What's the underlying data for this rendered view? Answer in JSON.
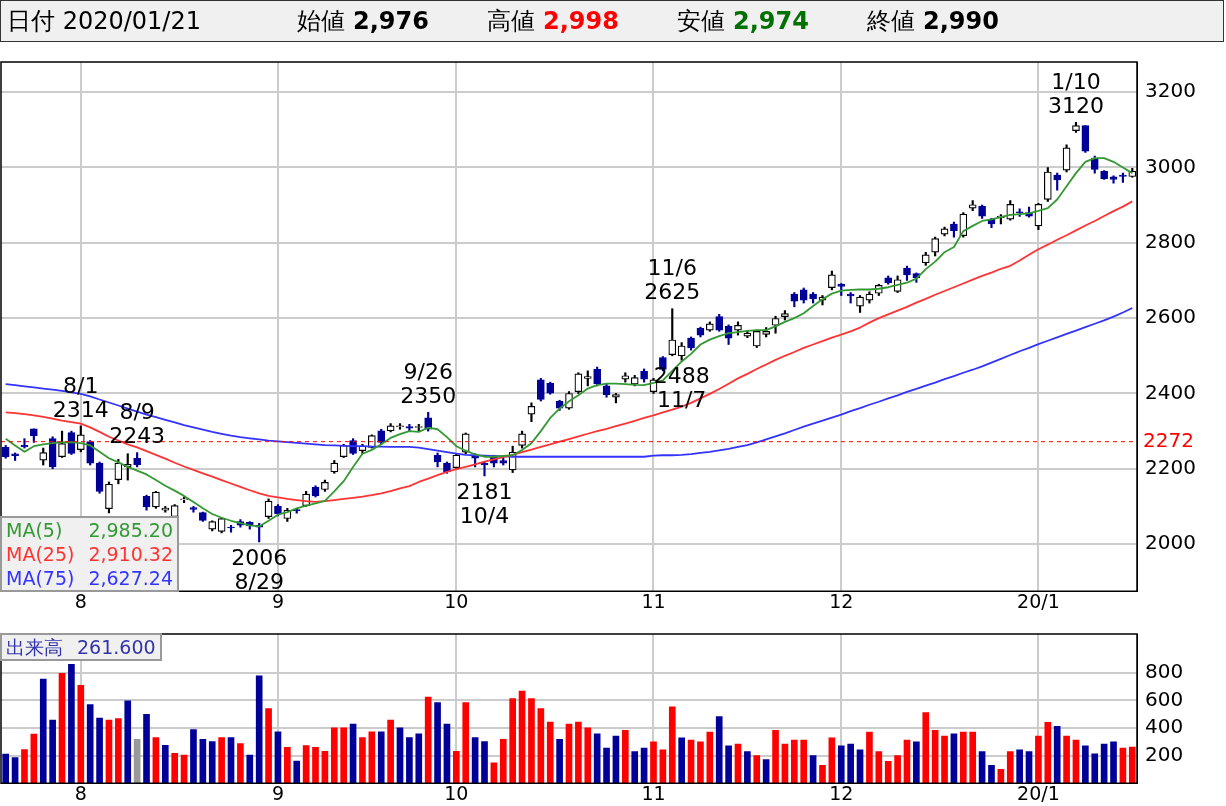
{
  "chart_data": [
    {
      "type": "other",
      "title": "日付 2020/01/21",
      "annotations": [
        "始値",
        "2,976",
        "高値",
        "2,998",
        "安値",
        "2,974",
        "終値",
        "2,990"
      ]
    },
    {
      "type": "candlestick",
      "colors": [
        "#000099",
        "#000099",
        "#000099",
        "#000099",
        "#000000",
        "#000099",
        "#000000",
        "#000099",
        "#000000",
        "#000099",
        "#000099",
        "#000000",
        "#000000",
        "#000000",
        "#000099",
        "#000099",
        "#000000",
        "#000000",
        "#000000",
        "#000000",
        "#000099",
        "#000099",
        "#000000",
        "#000000",
        "#000099",
        "#000099",
        "#000099",
        "#000099",
        "#000000",
        "#000099",
        "#000000",
        "#000099",
        "#000000",
        "#000099",
        "#000000",
        "#000000",
        "#000000",
        "#000099",
        "#000000",
        "#000000",
        "#000099",
        "#000000",
        "#000000",
        "#000099",
        "#000000",
        "#000099",
        "#000099",
        "#000099",
        "#000000",
        "#000000",
        "#000099",
        "#000099",
        "#000099",
        "#000099",
        "#000000",
        "#000000",
        "#000000",
        "#000099",
        "#000099",
        "#000099",
        "#000000",
        "#000000",
        "#000000",
        "#000099",
        "#000099",
        "#000000",
        "#000000",
        "#000000",
        "#000099",
        "#000000",
        "#000099",
        "#000000",
        "#000000",
        "#000099",
        "#000099",
        "#000000",
        "#000099",
        "#000099",
        "#000000",
        "#000000",
        "#000000",
        "#000000",
        "#000000",
        "#000000",
        "#000099",
        "#000099",
        "#000099",
        "#000000",
        "#000000",
        "#000099",
        "#000099",
        "#000000",
        "#000000",
        "#000000",
        "#000099",
        "#000000",
        "#000099",
        "#000099",
        "#000000",
        "#000000",
        "#000000",
        "#000099",
        "#000000",
        "#000000",
        "#000099",
        "#000099",
        "#000000",
        "#000000",
        "#000099",
        "#000099",
        "#000000",
        "#000000",
        "#000099",
        "#000000",
        "#000000",
        "#000099",
        "#000099",
        "#000099",
        "#000099",
        "#000099",
        "#000000"
      ],
      "categories": [
        null,
        null,
        null,
        null,
        null,
        null,
        null,
        null,
        "8",
        null,
        null,
        null,
        null,
        null,
        null,
        null,
        null,
        null,
        null,
        null,
        null,
        null,
        null,
        null,
        null,
        null,
        null,
        null,
        null,
        "9",
        null,
        null,
        null,
        null,
        null,
        null,
        null,
        null,
        null,
        null,
        null,
        null,
        null,
        null,
        null,
        null,
        null,
        null,
        "10",
        null,
        null,
        null,
        null,
        null,
        null,
        null,
        null,
        null,
        null,
        null,
        null,
        null,
        null,
        null,
        null,
        null,
        null,
        null,
        null,
        "11",
        null,
        null,
        null,
        null,
        null,
        null,
        null,
        null,
        null,
        null,
        null,
        null,
        null,
        null,
        null,
        null,
        null,
        null,
        null,
        "12",
        null,
        null,
        null,
        null,
        null,
        null,
        null,
        null,
        null,
        null,
        null,
        null,
        null,
        null,
        null,
        null,
        null,
        null,
        null,
        null,
        "20/1",
        null,
        null,
        null,
        null,
        null,
        null,
        null,
        null,
        null,
        null
      ],
      "ohlc": [
        [
          2257,
          2262,
          2228,
          2232
        ],
        [
          2240,
          2242,
          2222,
          2235
        ],
        [
          2262,
          2280,
          2255,
          2258
        ],
        [
          2306,
          2306,
          2270,
          2288
        ],
        [
          2223,
          2255,
          2210,
          2243
        ],
        [
          2280,
          2285,
          2200,
          2205
        ],
        [
          2232,
          2300,
          2230,
          2267
        ],
        [
          2296,
          2300,
          2238,
          2241
        ],
        [
          2251,
          2314,
          2245,
          2290
        ],
        [
          2272,
          2275,
          2210,
          2215
        ],
        [
          2215,
          2218,
          2135,
          2140
        ],
        [
          2094,
          2165,
          2083,
          2159
        ],
        [
          2171,
          2225,
          2160,
          2215
        ],
        [
          2205,
          2240,
          2170,
          2212
        ],
        [
          2228,
          2243,
          2205,
          2210
        ],
        [
          2127,
          2130,
          2090,
          2099
        ],
        [
          2099,
          2140,
          2095,
          2138
        ],
        [
          2090,
          2100,
          2085,
          2096
        ],
        [
          2073,
          2105,
          2070,
          2102
        ],
        [
          2118,
          2125,
          2110,
          2120
        ],
        [
          2097,
          2100,
          2085,
          2092
        ],
        [
          2084,
          2085,
          2060,
          2063
        ],
        [
          2040,
          2062,
          2035,
          2060
        ],
        [
          2034,
          2070,
          2030,
          2068
        ],
        [
          2045,
          2050,
          2032,
          2043
        ],
        [
          2060,
          2065,
          2045,
          2050
        ],
        [
          2058,
          2060,
          2040,
          2048
        ],
        [
          2050,
          2055,
          2006,
          2045
        ],
        [
          2073,
          2120,
          2068,
          2114
        ],
        [
          2100,
          2105,
          2075,
          2081
        ],
        [
          2068,
          2095,
          2060,
          2090
        ],
        [
          2092,
          2095,
          2082,
          2088
        ],
        [
          2102,
          2140,
          2100,
          2133
        ],
        [
          2151,
          2155,
          2125,
          2128
        ],
        [
          2145,
          2170,
          2140,
          2164
        ],
        [
          2192,
          2222,
          2188,
          2215
        ],
        [
          2232,
          2265,
          2230,
          2262
        ],
        [
          2275,
          2280,
          2238,
          2241
        ],
        [
          2248,
          2265,
          2240,
          2260
        ],
        [
          2257,
          2290,
          2255,
          2288
        ],
        [
          2301,
          2305,
          2265,
          2270
        ],
        [
          2301,
          2320,
          2298,
          2314
        ],
        [
          2312,
          2320,
          2305,
          2314
        ],
        [
          2312,
          2318,
          2300,
          2308
        ],
        [
          2310,
          2318,
          2300,
          2312
        ],
        [
          2335,
          2350,
          2300,
          2305
        ],
        [
          2236,
          2242,
          2205,
          2218
        ],
        [
          2215,
          2218,
          2188,
          2192
        ],
        [
          2203,
          2240,
          2200,
          2236
        ],
        [
          2244,
          2295,
          2240,
          2293
        ],
        [
          2236,
          2240,
          2205,
          2228
        ],
        [
          2215,
          2218,
          2181,
          2210
        ],
        [
          2232,
          2236,
          2205,
          2215
        ],
        [
          2222,
          2228,
          2210,
          2215
        ],
        [
          2197,
          2260,
          2190,
          2244
        ],
        [
          2262,
          2300,
          2255,
          2293
        ],
        [
          2345,
          2375,
          2325,
          2366
        ],
        [
          2436,
          2440,
          2380,
          2384
        ],
        [
          2427,
          2430,
          2398,
          2401
        ],
        [
          2379,
          2382,
          2355,
          2361
        ],
        [
          2361,
          2405,
          2358,
          2400
        ],
        [
          2405,
          2455,
          2400,
          2452
        ],
        [
          2440,
          2460,
          2420,
          2445
        ],
        [
          2464,
          2470,
          2420,
          2425
        ],
        [
          2420,
          2425,
          2390,
          2397
        ],
        [
          2390,
          2400,
          2375,
          2397
        ],
        [
          2438,
          2455,
          2430,
          2447
        ],
        [
          2425,
          2448,
          2420,
          2442
        ],
        [
          2459,
          2465,
          2430,
          2438
        ],
        [
          2405,
          2440,
          2400,
          2436
        ],
        [
          2495,
          2498,
          2460,
          2464
        ],
        [
          2503,
          2625,
          2500,
          2542
        ],
        [
          2500,
          2535,
          2488,
          2526
        ],
        [
          2547,
          2550,
          2515,
          2521
        ],
        [
          2573,
          2576,
          2550,
          2555
        ],
        [
          2568,
          2590,
          2565,
          2585
        ],
        [
          2604,
          2610,
          2565,
          2568
        ],
        [
          2578,
          2582,
          2530,
          2547
        ],
        [
          2568,
          2590,
          2555,
          2581
        ],
        [
          2552,
          2565,
          2548,
          2560
        ],
        [
          2526,
          2568,
          2522,
          2565
        ],
        [
          2557,
          2575,
          2550,
          2565
        ],
        [
          2581,
          2605,
          2560,
          2599
        ],
        [
          2604,
          2620,
          2595,
          2612
        ],
        [
          2664,
          2668,
          2630,
          2645
        ],
        [
          2675,
          2680,
          2640,
          2648
        ],
        [
          2664,
          2668,
          2640,
          2651
        ],
        [
          2648,
          2660,
          2635,
          2656
        ],
        [
          2681,
          2725,
          2675,
          2715
        ],
        [
          2690,
          2692,
          2660,
          2684
        ],
        [
          2664,
          2668,
          2640,
          2659
        ],
        [
          2632,
          2660,
          2615,
          2656
        ],
        [
          2648,
          2670,
          2640,
          2664
        ],
        [
          2666,
          2690,
          2660,
          2687
        ],
        [
          2707,
          2712,
          2690,
          2694
        ],
        [
          2671,
          2712,
          2668,
          2702
        ],
        [
          2733,
          2738,
          2700,
          2715
        ],
        [
          2718,
          2720,
          2695,
          2707
        ],
        [
          2747,
          2775,
          2740,
          2768
        ],
        [
          2775,
          2815,
          2765,
          2811
        ],
        [
          2823,
          2842,
          2818,
          2837
        ],
        [
          2850,
          2855,
          2815,
          2832
        ],
        [
          2819,
          2880,
          2815,
          2876
        ],
        [
          2892,
          2912,
          2885,
          2901
        ],
        [
          2897,
          2900,
          2865,
          2871
        ],
        [
          2862,
          2865,
          2840,
          2850
        ],
        [
          2867,
          2875,
          2850,
          2871
        ],
        [
          2863,
          2912,
          2860,
          2902
        ],
        [
          2882,
          2890,
          2870,
          2880
        ],
        [
          2880,
          2895,
          2868,
          2871
        ],
        [
          2845,
          2905,
          2835,
          2902
        ],
        [
          2915,
          3000,
          2910,
          2988
        ],
        [
          2980,
          2985,
          2940,
          2967
        ],
        [
          2993,
          3060,
          2988,
          3052
        ],
        [
          3098,
          3120,
          3093,
          3111
        ],
        [
          3111,
          3111,
          3040,
          3043
        ],
        [
          3025,
          3030,
          2985,
          2995
        ],
        [
          2990,
          2992,
          2968,
          2970
        ],
        [
          2975,
          2978,
          2958,
          2968
        ],
        [
          2980,
          2985,
          2960,
          2976
        ],
        [
          2976,
          2998,
          2974,
          2990
        ]
      ],
      "series": [
        {
          "name": "MA(5)",
          "type": "line",
          "color": "#339933",
          "values": [
            2280,
            2262,
            2245,
            2260,
            2265,
            2268,
            2270,
            2271,
            2268,
            2262,
            2245,
            2228,
            2217,
            2205,
            2195,
            2185,
            2170,
            2155,
            2142,
            2128,
            2112,
            2095,
            2080,
            2070,
            2062,
            2056,
            2050,
            2047,
            2062,
            2078,
            2085,
            2095,
            2102,
            2108,
            2115,
            2140,
            2167,
            2205,
            2240,
            2250,
            2265,
            2282,
            2292,
            2300,
            2298,
            2309,
            2305,
            2284,
            2260,
            2248,
            2238,
            2232,
            2232,
            2234,
            2236,
            2250,
            2268,
            2300,
            2335,
            2360,
            2379,
            2395,
            2413,
            2422,
            2426,
            2426,
            2425,
            2423,
            2422,
            2428,
            2435,
            2460,
            2485,
            2505,
            2530,
            2543,
            2552,
            2560,
            2563,
            2566,
            2568,
            2568,
            2578,
            2590,
            2600,
            2613,
            2632,
            2650,
            2665,
            2673,
            2675,
            2676,
            2676,
            2678,
            2682,
            2688,
            2694,
            2705,
            2730,
            2750,
            2775,
            2789,
            2831,
            2845,
            2858,
            2862,
            2868,
            2874,
            2876,
            2878,
            2885,
            2892,
            2915,
            2950,
            2985,
            3015,
            3025,
            3025,
            3015,
            3000,
            2985
          ]
        },
        {
          "name": "MA(25)",
          "type": "line",
          "color": "#ff3333",
          "values": [
            2350,
            2348,
            2345,
            2342,
            2338,
            2333,
            2328,
            2324,
            2320,
            2310,
            2298,
            2285,
            2275,
            2265,
            2257,
            2247,
            2237,
            2227,
            2216,
            2206,
            2197,
            2188,
            2179,
            2170,
            2161,
            2152,
            2143,
            2135,
            2128,
            2124,
            2120,
            2117,
            2114,
            2112,
            2114,
            2117,
            2120,
            2123,
            2126,
            2130,
            2135,
            2141,
            2148,
            2154,
            2165,
            2174,
            2183,
            2192,
            2199,
            2205,
            2212,
            2219,
            2225,
            2231,
            2237,
            2244,
            2251,
            2258,
            2265,
            2272,
            2279,
            2286,
            2293,
            2300,
            2306,
            2313,
            2320,
            2327,
            2335,
            2342,
            2350,
            2357,
            2365,
            2375,
            2387,
            2399,
            2412,
            2426,
            2440,
            2452,
            2465,
            2477,
            2489,
            2500,
            2510,
            2521,
            2530,
            2539,
            2548,
            2556,
            2565,
            2575,
            2588,
            2600,
            2610,
            2620,
            2630,
            2641,
            2651,
            2662,
            2672,
            2682,
            2692,
            2702,
            2712,
            2721,
            2731,
            2739,
            2753,
            2768,
            2783,
            2795,
            2808,
            2820,
            2833,
            2846,
            2858,
            2871,
            2884,
            2896,
            2910
          ]
        },
        {
          "name": "MA(75)",
          "type": "line",
          "color": "#3333ff",
          "values": [
            2425,
            2422,
            2419,
            2416,
            2413,
            2410,
            2407,
            2403,
            2399,
            2392,
            2384,
            2376,
            2368,
            2360,
            2352,
            2344,
            2337,
            2330,
            2323,
            2316,
            2310,
            2304,
            2298,
            2293,
            2288,
            2284,
            2281,
            2278,
            2275,
            2273,
            2271,
            2269,
            2267,
            2265,
            2263,
            2262,
            2261,
            2260,
            2260,
            2259,
            2259,
            2258,
            2258,
            2258,
            2256,
            2252,
            2248,
            2244,
            2240,
            2237,
            2236,
            2235,
            2234,
            2233,
            2232,
            2232,
            2232,
            2232,
            2232,
            2232,
            2232,
            2232,
            2232,
            2232,
            2232,
            2232,
            2232,
            2232,
            2232,
            2235,
            2236,
            2236,
            2237,
            2239,
            2242,
            2245,
            2249,
            2253,
            2258,
            2263,
            2270,
            2278,
            2286,
            2294,
            2303,
            2312,
            2320,
            2328,
            2336,
            2344,
            2353,
            2361,
            2370,
            2378,
            2387,
            2395,
            2404,
            2412,
            2421,
            2429,
            2438,
            2446,
            2455,
            2463,
            2472,
            2482,
            2492,
            2502,
            2512,
            2521,
            2531,
            2540,
            2549,
            2558,
            2567,
            2576,
            2585,
            2594,
            2604,
            2615,
            2627
          ]
        }
      ],
      "ylim": [
        1875,
        3280
      ],
      "yticks": [
        2000,
        2200,
        2400,
        2600,
        2800,
        3000,
        3200
      ],
      "grid": true,
      "legend": "bottom left",
      "ref_lines": [
        {
          "axis": "y",
          "value": 2272,
          "label": "2272",
          "color": "#ff0000",
          "line_style": "dashed"
        }
      ],
      "annotations": [
        "2,985.20",
        "2,910.32",
        "2,627.24",
        {
          "text": "8/1\n2314",
          "y": 2314
        },
        {
          "text": "8/9\n2243",
          "y": 2243
        },
        {
          "text": "2006\n8/29",
          "y": 2006
        },
        {
          "text": "9/26\n2350",
          "y": 2350
        },
        {
          "text": "2181\n10/4",
          "y": 2181
        },
        {
          "text": "11/6\n2625",
          "y": 2625
        },
        {
          "text": "2488\n11/7",
          "y": 2488
        },
        {
          "text": "1/10\n3120",
          "y": 3120
        }
      ]
    },
    {
      "type": "bar",
      "categories": [
        null,
        null,
        null,
        null,
        null,
        null,
        null,
        null,
        "8",
        null,
        null,
        null,
        null,
        null,
        null,
        null,
        null,
        null,
        null,
        null,
        null,
        null,
        null,
        null,
        null,
        null,
        null,
        null,
        null,
        "9",
        null,
        null,
        null,
        null,
        null,
        null,
        null,
        null,
        null,
        null,
        null,
        null,
        null,
        null,
        null,
        null,
        null,
        null,
        "10",
        null,
        null,
        null,
        null,
        null,
        null,
        null,
        null,
        null,
        null,
        null,
        null,
        null,
        null,
        null,
        null,
        null,
        null,
        null,
        null,
        "11",
        null,
        null,
        null,
        null,
        null,
        null,
        null,
        null,
        null,
        null,
        null,
        null,
        null,
        null,
        null,
        null,
        null,
        null,
        null,
        "12",
        null,
        null,
        null,
        null,
        null,
        null,
        null,
        null,
        null,
        null,
        null,
        null,
        null,
        null,
        null,
        null,
        null,
        null,
        null,
        null,
        "20/1",
        null,
        null,
        null,
        null,
        null,
        null,
        null,
        null,
        null,
        null
      ],
      "series": [
        {
          "name": "出来高",
          "colors": [
            "#000099",
            "#000099",
            "#ff0000",
            "#ff0000",
            "#000099",
            "#000099",
            "#ff0000",
            "#000099",
            "#ff0000",
            "#000099",
            "#000099",
            "#ff0000",
            "#ff0000",
            "#000099",
            "#999999",
            "#000099",
            "#ff0000",
            "#000099",
            "#ff0000",
            "#ff0000",
            "#000099",
            "#000099",
            "#000099",
            "#ff0000",
            "#000099",
            "#ff0000",
            "#000099",
            "#000099",
            "#ff0000",
            "#000099",
            "#ff0000",
            "#000099",
            "#ff0000",
            "#ff0000",
            "#ff0000",
            "#ff0000",
            "#ff0000",
            "#000099",
            "#ff0000",
            "#ff0000",
            "#000099",
            "#ff0000",
            "#000099",
            "#000099",
            "#000099",
            "#ff0000",
            "#000099",
            "#000099",
            "#ff0000",
            "#ff0000",
            "#000099",
            "#000099",
            "#ff0000",
            "#ff0000",
            "#ff0000",
            "#ff0000",
            "#ff0000",
            "#ff0000",
            "#ff0000",
            "#000099",
            "#ff0000",
            "#ff0000",
            "#ff0000",
            "#000099",
            "#000099",
            "#000099",
            "#ff0000",
            "#000099",
            "#000099",
            "#ff0000",
            "#ff0000",
            "#ff0000",
            "#000099",
            "#ff0000",
            "#ff0000",
            "#ff0000",
            "#000099",
            "#000099",
            "#ff0000",
            "#000099",
            "#ff0000",
            "#000099",
            "#ff0000",
            "#ff0000",
            "#ff0000",
            "#ff0000",
            "#000099",
            "#ff0000",
            "#ff0000",
            "#000099",
            "#000099",
            "#000099",
            "#ff0000",
            "#ff0000",
            "#ff0000",
            "#ff0000",
            "#ff0000",
            "#000099",
            "#ff0000",
            "#ff0000",
            "#ff0000",
            "#000099",
            "#ff0000",
            "#ff0000",
            "#000099",
            "#000099",
            "#ff0000",
            "#ff0000",
            "#000099",
            "#000099",
            "#ff0000",
            "#ff0000",
            "#000099",
            "#ff0000",
            "#ff0000",
            "#000099",
            "#000099",
            "#000099",
            "#000099",
            "#ff0000",
            "#ff0000"
          ],
          "values": [
            211,
            186,
            244,
            355,
            753,
            456,
            796,
            861,
            708,
            569,
            471,
            456,
            468,
            597,
            317,
            498,
            330,
            274,
            216,
            204,
            388,
            317,
            302,
            330,
            330,
            287,
            204,
            778,
            541,
            372,
            259,
            161,
            272,
            259,
            231,
            400,
            400,
            428,
            330,
            372,
            372,
            456,
            400,
            330,
            357,
            624,
            584,
            428,
            231,
            584,
            330,
            302,
            148,
            317,
            612,
            667,
            612,
            541,
            443,
            317,
            428,
            443,
            400,
            357,
            255,
            341,
            383,
            229,
            255,
            299,
            242,
            553,
            328,
            312,
            299,
            370,
            482,
            270,
            283,
            229,
            200,
            171,
            383,
            283,
            312,
            312,
            200,
            129,
            328,
            270,
            283,
            242,
            370,
            229,
            158,
            200,
            312,
            299,
            511,
            383,
            341,
            357,
            370,
            370,
            229,
            129,
            100,
            229,
            242,
            229,
            341,
            440,
            412,
            341,
            312,
            270,
            213,
            283,
            299,
            255,
            262
          ]
        }
      ],
      "ylim": [
        0,
        1080
      ],
      "yticks": [
        200,
        400,
        600,
        800
      ],
      "grid": true,
      "legend": "top left",
      "annotations": [
        "261.600"
      ]
    }
  ]
}
